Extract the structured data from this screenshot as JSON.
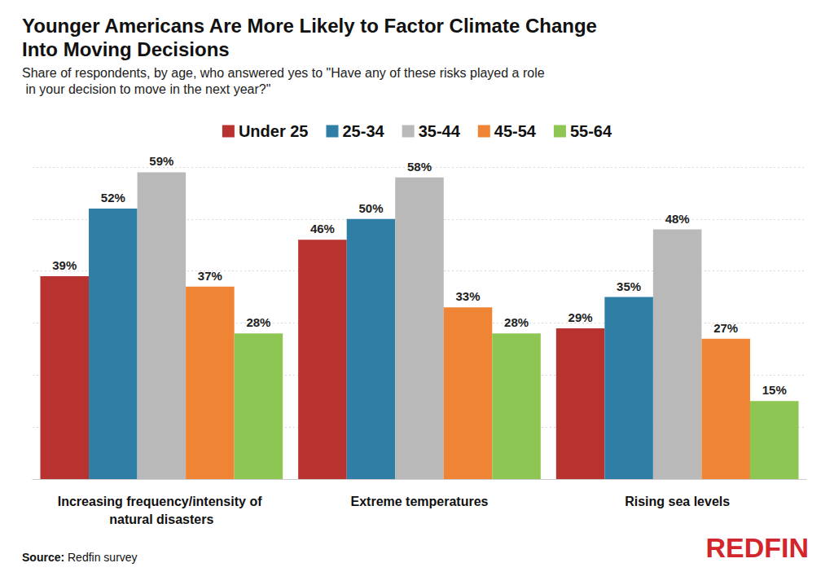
{
  "chart_data": {
    "type": "bar",
    "title": "Younger Americans Are More Likely to Factor Climate Change Into Moving Decisions",
    "subtitle": "Share of respondents, by age, who answered yes to \"Have any of these risks played a role in your decision to move in the next year?\"",
    "source": "Source: Redfin survey",
    "logo": "REDFIN",
    "categories": [
      "Increasing frequency/intensity of natural disasters",
      "Extreme temperatures",
      "Rising sea levels"
    ],
    "series": [
      {
        "name": "Under 25",
        "color": "#b83230",
        "values": [
          39,
          46,
          29
        ],
        "value_labels": [
          "39%",
          "46%",
          "29%"
        ]
      },
      {
        "name": "25-34",
        "color": "#2e7ea6",
        "values": [
          52,
          50,
          35
        ],
        "value_labels": [
          "52%",
          "50%",
          "35%"
        ]
      },
      {
        "name": "35-44",
        "color": "#b9b9b9",
        "values": [
          59,
          58,
          48
        ],
        "value_labels": [
          "59%",
          "58%",
          "48%"
        ]
      },
      {
        "name": "45-54",
        "color": "#ee8434",
        "values": [
          37,
          33,
          27
        ],
        "value_labels": [
          "37%",
          "33%",
          "27%"
        ]
      },
      {
        "name": "55-64",
        "color": "#8dc653",
        "values": [
          28,
          28,
          15
        ],
        "value_labels": [
          "28%",
          "28%",
          "15%"
        ]
      }
    ],
    "ylim": [
      0,
      60
    ],
    "yticks": [
      0,
      10,
      20,
      30,
      40,
      50,
      60
    ],
    "grid": true,
    "legend": "top",
    "data_labels": true,
    "tick_labels": "x"
  }
}
